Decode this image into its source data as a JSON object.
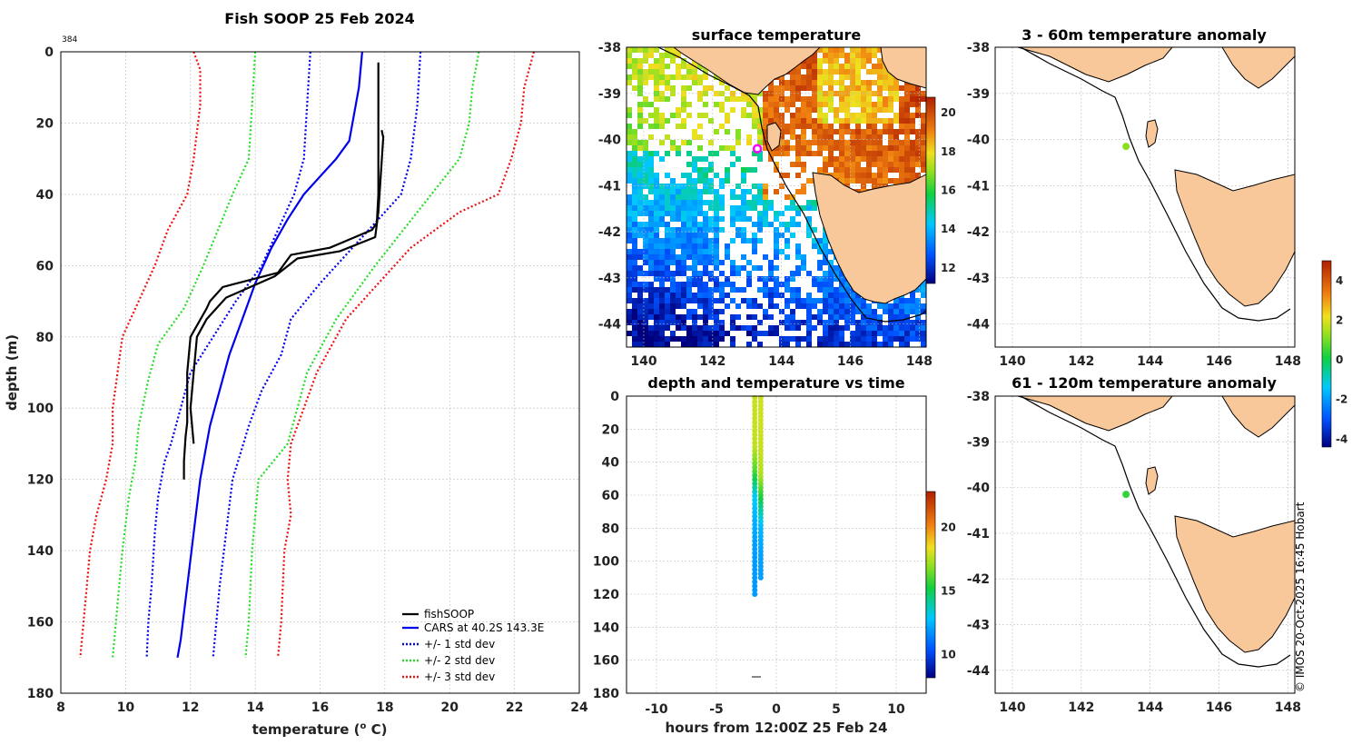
{
  "main_profile": {
    "title": "Fish SOOP 25 Feb 2024",
    "id_label": "384",
    "xlabel_prefix": "temperature (",
    "xlabel_sup": "o",
    "xlabel_suffix": " C)",
    "ylabel": "depth (m)",
    "xlim": [
      8,
      24
    ],
    "ylim": [
      0,
      180
    ],
    "xticks": [
      "8",
      "10",
      "12",
      "14",
      "16",
      "18",
      "20",
      "22",
      "24"
    ],
    "yticks": [
      "0",
      "20",
      "40",
      "60",
      "80",
      "100",
      "120",
      "140",
      "160",
      "180"
    ],
    "colors": {
      "fishsoop": "#000000",
      "cars": "#0000ee",
      "std1": "#0000ee",
      "std2": "#22dd22",
      "std3": "#ee1111"
    },
    "legend": [
      "fishSOOP",
      "CARS at 40.2S 143.3E",
      "+/- 1 std dev",
      "+/- 2 std dev",
      "+/- 3 std dev"
    ]
  },
  "chart_data": [
    {
      "type": "line",
      "name": "profile",
      "series": [
        {
          "name": "fishSOOP (down)",
          "x": [
            17.8,
            17.8,
            17.8,
            17.75,
            17.6,
            16.3,
            15.1,
            14.7,
            13.0,
            12.6,
            12.5,
            12.0,
            11.9,
            11.9,
            11.9,
            11.85,
            11.8,
            11.8
          ],
          "y": [
            3,
            20,
            40,
            48,
            50,
            55,
            57,
            62,
            66,
            70,
            72,
            80,
            90,
            100,
            104,
            108,
            115,
            120
          ]
        },
        {
          "name": "fishSOOP (up)",
          "x": [
            17.9,
            17.95,
            17.8,
            17.7,
            16.6,
            15.3,
            14.6,
            13.1,
            12.5,
            12.2,
            12.1,
            12.0,
            12.1
          ],
          "y": [
            22,
            24,
            45,
            52,
            56,
            58,
            63,
            69,
            75,
            80,
            90,
            100,
            110
          ]
        },
        {
          "name": "CARS at 40.2S 143.3E",
          "x": [
            17.3,
            17.2,
            17.0,
            16.9,
            16.5,
            16.0,
            15.5,
            15.0,
            14.5,
            14.0,
            13.6,
            13.2,
            12.9,
            12.6,
            12.3,
            12.1,
            11.9,
            11.7,
            11.6
          ],
          "y": [
            0,
            10,
            20,
            25,
            30,
            35,
            40,
            47,
            55,
            65,
            75,
            85,
            95,
            105,
            120,
            135,
            150,
            165,
            170
          ]
        },
        {
          "name": "-1 std dev",
          "x": [
            15.7,
            15.6,
            15.5,
            15.2,
            14.2,
            13.4,
            12.7,
            12.0,
            11.7,
            11.4,
            11.2,
            11.0,
            10.9,
            10.8,
            10.7,
            10.65
          ],
          "y": [
            0,
            15,
            30,
            40,
            60,
            70,
            80,
            90,
            100,
            110,
            115,
            125,
            135,
            150,
            160,
            170
          ]
        },
        {
          "name": "+1 std dev",
          "x": [
            19.1,
            19.0,
            18.8,
            18.5,
            17.0,
            16.0,
            15.1,
            14.8,
            14.2,
            13.8,
            13.3,
            13.1,
            12.9,
            12.8,
            12.7
          ],
          "y": [
            0,
            15,
            30,
            40,
            55,
            65,
            75,
            85,
            95,
            105,
            120,
            135,
            150,
            160,
            170
          ]
        },
        {
          "name": "-2 std dev",
          "x": [
            14.0,
            13.9,
            13.8,
            13.3,
            12.4,
            11.8,
            11.0,
            10.7,
            10.4,
            10.3,
            10.1,
            9.9,
            9.8,
            9.7,
            9.6
          ],
          "y": [
            0,
            15,
            30,
            40,
            60,
            72,
            82,
            92,
            105,
            115,
            125,
            140,
            150,
            160,
            170
          ]
        },
        {
          "name": "+2 std dev",
          "x": [
            20.9,
            20.7,
            20.6,
            20.3,
            19.0,
            17.7,
            16.5,
            15.6,
            15.0,
            14.1,
            13.9,
            13.8,
            13.7
          ],
          "y": [
            0,
            10,
            20,
            30,
            45,
            60,
            75,
            90,
            110,
            120,
            140,
            160,
            170
          ]
        },
        {
          "name": "-3 std dev",
          "x": [
            12.1,
            12.3,
            12.3,
            12.1,
            11.9,
            11.3,
            10.9,
            10.4,
            9.9,
            9.6,
            9.6,
            9.4,
            9.1,
            8.9,
            8.8,
            8.7,
            8.6
          ],
          "y": [
            0,
            5,
            15,
            30,
            40,
            50,
            60,
            70,
            80,
            100,
            110,
            120,
            130,
            140,
            150,
            160,
            170
          ]
        },
        {
          "name": "+3 std dev",
          "x": [
            22.6,
            22.3,
            22.2,
            21.9,
            21.5,
            20.3,
            18.8,
            17.8,
            16.8,
            15.9,
            15.1,
            15.0,
            15.1,
            14.9,
            14.8,
            14.7
          ],
          "y": [
            0,
            10,
            20,
            30,
            40,
            45,
            55,
            65,
            75,
            90,
            110,
            120,
            130,
            140,
            160,
            170
          ]
        }
      ]
    },
    {
      "type": "heatmap",
      "name": "surface temperature map",
      "title": "surface temperature",
      "xlim": [
        139.5,
        148.2
      ],
      "ylim": [
        -44.5,
        -38
      ],
      "xticks": [
        "140",
        "142",
        "144",
        "146",
        "148"
      ],
      "yticks": [
        "-38",
        "-39",
        "-40",
        "-41",
        "-42",
        "-43",
        "-44"
      ],
      "colorbar_ticks": [
        "12",
        "14",
        "16",
        "18",
        "20"
      ],
      "colorbar_range": [
        11.2,
        20.8
      ],
      "marker_lon": 143.3,
      "marker_lat": -40.2
    },
    {
      "type": "scatter",
      "name": "depth and temperature vs time",
      "title": "depth and temperature vs time",
      "xlabel": "hours from 12:00Z 25 Feb 24",
      "xlim": [
        -12.5,
        12.5
      ],
      "ylim": [
        0,
        180
      ],
      "xticks": [
        "-10",
        "-5",
        "0",
        "5",
        "10"
      ],
      "yticks": [
        "0",
        "20",
        "40",
        "60",
        "80",
        "100",
        "120",
        "140",
        "160",
        "180"
      ],
      "colorbar_ticks": [
        "10",
        "15",
        "20"
      ],
      "colorbar_range": [
        8.2,
        22.8
      ],
      "casts": [
        {
          "hour": -1.8,
          "depth_max": 120,
          "temps": [
            17.8,
            17.8,
            17.7,
            16.0,
            13.0,
            12.4,
            12.0,
            11.9,
            11.9
          ]
        },
        {
          "hour": -1.3,
          "depth_max": 110,
          "temps": [
            17.9,
            17.9,
            17.8,
            17.5,
            15.0,
            12.6,
            12.1,
            12.0
          ]
        }
      ]
    },
    {
      "type": "scatter",
      "name": "3 - 60m temperature anomaly",
      "title": "3 - 60m temperature anomaly",
      "xlim": [
        139.5,
        148.2
      ],
      "ylim": [
        -44.5,
        -38
      ],
      "xticks": [
        "140",
        "142",
        "144",
        "146",
        "148"
      ],
      "yticks": [
        "-38",
        "-39",
        "-40",
        "-41",
        "-42",
        "-43",
        "-44"
      ],
      "points": [
        {
          "lon": 143.3,
          "lat": -40.15,
          "anomaly": 1.2
        }
      ]
    },
    {
      "type": "scatter",
      "name": "61 - 120m temperature anomaly",
      "title": "61 - 120m temperature anomaly",
      "xlim": [
        139.5,
        148.2
      ],
      "ylim": [
        -44.5,
        -38
      ],
      "xticks": [
        "140",
        "142",
        "144",
        "146",
        "148"
      ],
      "yticks": [
        "-38",
        "-39",
        "-40",
        "-41",
        "-42",
        "-43",
        "-44"
      ],
      "points": [
        {
          "lon": 143.3,
          "lat": -40.15,
          "anomaly": 0.4
        }
      ]
    },
    {
      "type": "heatmap",
      "name": "anomaly colorbar",
      "colorbar_ticks": [
        "4",
        "2",
        "0",
        "-2",
        "-4"
      ],
      "colorbar_range": [
        -4.4,
        5.0
      ]
    }
  ],
  "credit": "© IMOS 20-Oct-2025 16:45 Hobart"
}
